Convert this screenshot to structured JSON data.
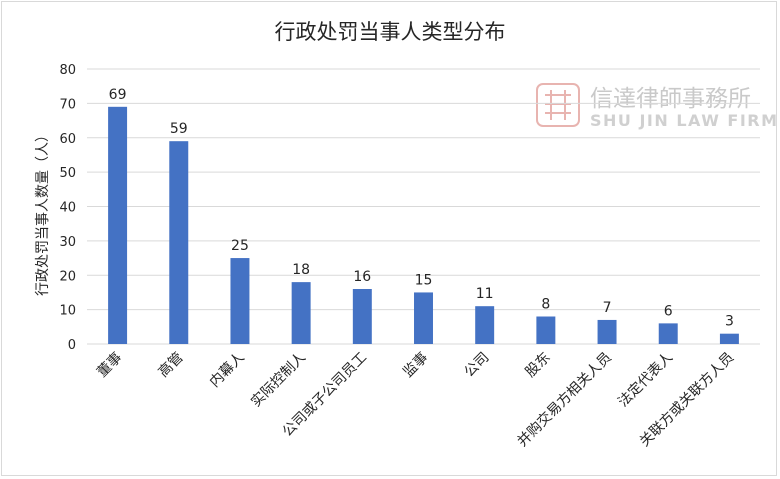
{
  "chart_data": {
    "type": "bar",
    "title": "行政处罚当事人类型分布",
    "xlabel": "",
    "ylabel": "行政处罚当事人数量（人）",
    "ylim": [
      0,
      80
    ],
    "yticks": [
      "0",
      "10",
      "20",
      "30",
      "40",
      "50",
      "60",
      "70",
      "80"
    ],
    "grid": true,
    "categories": [
      "董事",
      "高管",
      "内幕人",
      "实际控制人",
      "公司或子公司员工",
      "监事",
      "公司",
      "股东",
      "并购交易方相关人员",
      "法定代表人",
      "关联方或关联方人员"
    ],
    "values": [
      69,
      59,
      25,
      18,
      16,
      15,
      11,
      8,
      7,
      6,
      3
    ],
    "bar_color": "#4472c4"
  },
  "watermark": {
    "name_cn": "信達律師事務所",
    "name_en": "SHU JIN LAW FIRM",
    "seal_color": "#e8b4b0"
  }
}
